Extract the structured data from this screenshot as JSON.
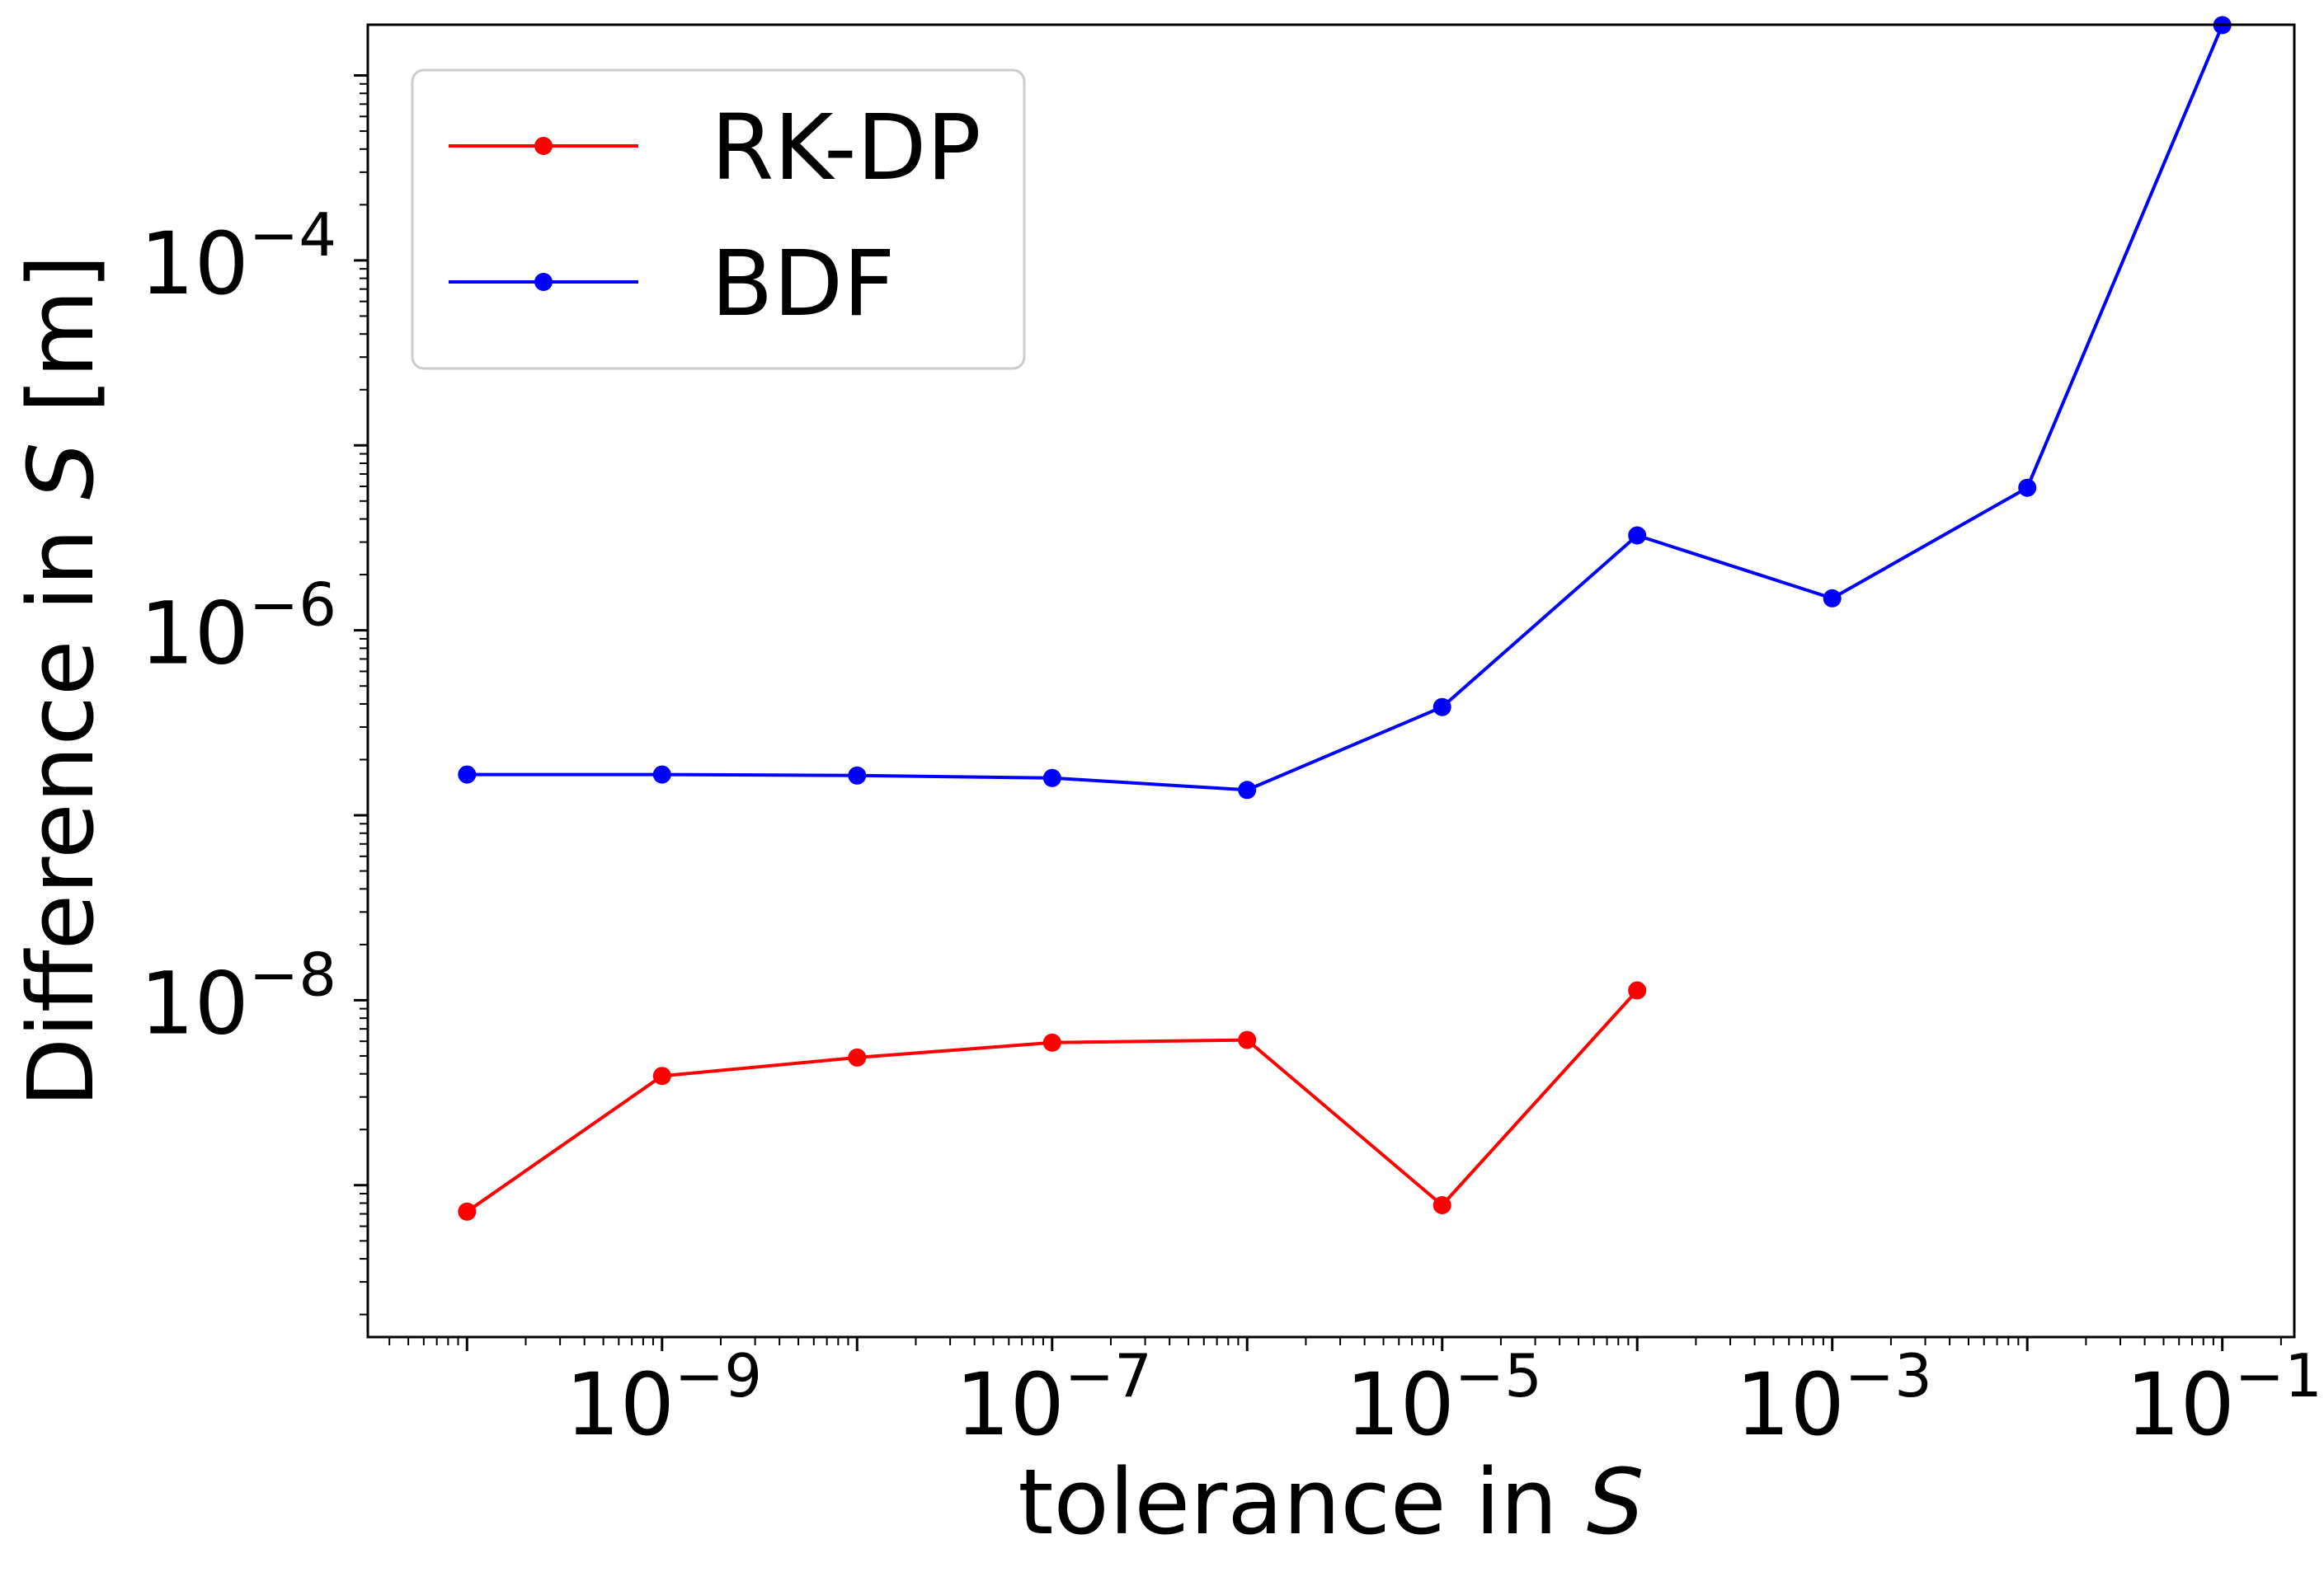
{
  "chart_data": {
    "type": "line",
    "xlabel": {
      "text": "tolerance in ",
      "var": "S"
    },
    "ylabel": {
      "text": "Difference in ",
      "var": "S",
      "unit": " [m]"
    },
    "x_scale": "log",
    "y_scale": "log",
    "xlim": [
      3.1e-11,
      0.234
    ],
    "ylim": [
      1.51e-10,
      0.00188
    ],
    "x_ticks": [
      {
        "value": 1e-09,
        "base": "10",
        "exp": "−9"
      },
      {
        "value": 1e-07,
        "base": "10",
        "exp": "−7"
      },
      {
        "value": 1e-05,
        "base": "10",
        "exp": "−5"
      },
      {
        "value": 0.001,
        "base": "10",
        "exp": "−3"
      },
      {
        "value": 0.1,
        "base": "10",
        "exp": "−1"
      }
    ],
    "y_ticks": [
      {
        "value": 1e-08,
        "base": "10",
        "exp": "−8"
      },
      {
        "value": 1e-06,
        "base": "10",
        "exp": "−6"
      },
      {
        "value": 0.0001,
        "base": "10",
        "exp": "−4"
      }
    ],
    "grid": false,
    "legend_position": "top-left",
    "series": [
      {
        "name": "RK-DP",
        "color": "#ff0000",
        "x": [
          1e-10,
          1e-09,
          1e-08,
          1e-07,
          1e-06,
          1e-05,
          0.0001
        ],
        "y": [
          7.2e-10,
          3.9e-09,
          4.9e-09,
          5.9e-09,
          6.1e-09,
          7.8e-10,
          1.13e-08
        ]
      },
      {
        "name": "BDF",
        "color": "#0000ff",
        "x": [
          1e-10,
          1e-09,
          1e-08,
          1e-07,
          1e-06,
          1e-05,
          0.0001,
          0.001,
          0.01,
          0.1
        ],
        "y": [
          1.66e-07,
          1.66e-07,
          1.64e-07,
          1.59e-07,
          1.37e-07,
          3.85e-07,
          3.26e-06,
          1.49e-06,
          5.9e-06,
          0.00187
        ]
      }
    ]
  }
}
